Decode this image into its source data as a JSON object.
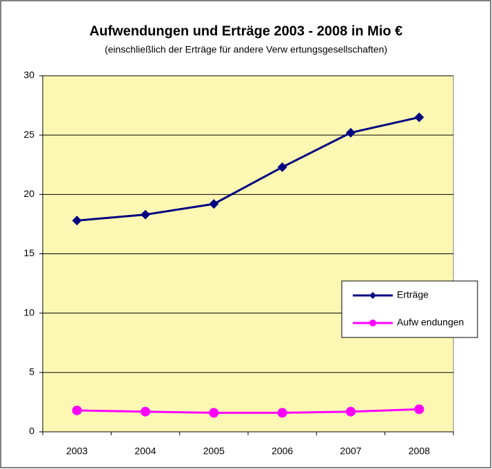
{
  "chart_data": {
    "type": "line",
    "title": "Aufwendungen und Erträge 2003 - 2008 in Mio €",
    "subtitle": "(einschließlich der Erträge für andere Verw ertungsgesellschaften)",
    "categories": [
      "2003",
      "2004",
      "2005",
      "2006",
      "2007",
      "2008"
    ],
    "series": [
      {
        "name": "Erträge",
        "color": "#000080",
        "marker": "diamond",
        "values": [
          17.8,
          18.3,
          19.2,
          22.3,
          25.2,
          26.5
        ]
      },
      {
        "name": "Aufw endungen",
        "color": "#ff00ff",
        "marker": "circle",
        "values": [
          1.8,
          1.7,
          1.6,
          1.6,
          1.7,
          1.9
        ]
      }
    ],
    "ylim": [
      0,
      30
    ],
    "yticks": [
      0,
      5,
      10,
      15,
      20,
      25,
      30
    ],
    "grid": true,
    "legend": "right",
    "plot_background": "#fcf8b4"
  }
}
